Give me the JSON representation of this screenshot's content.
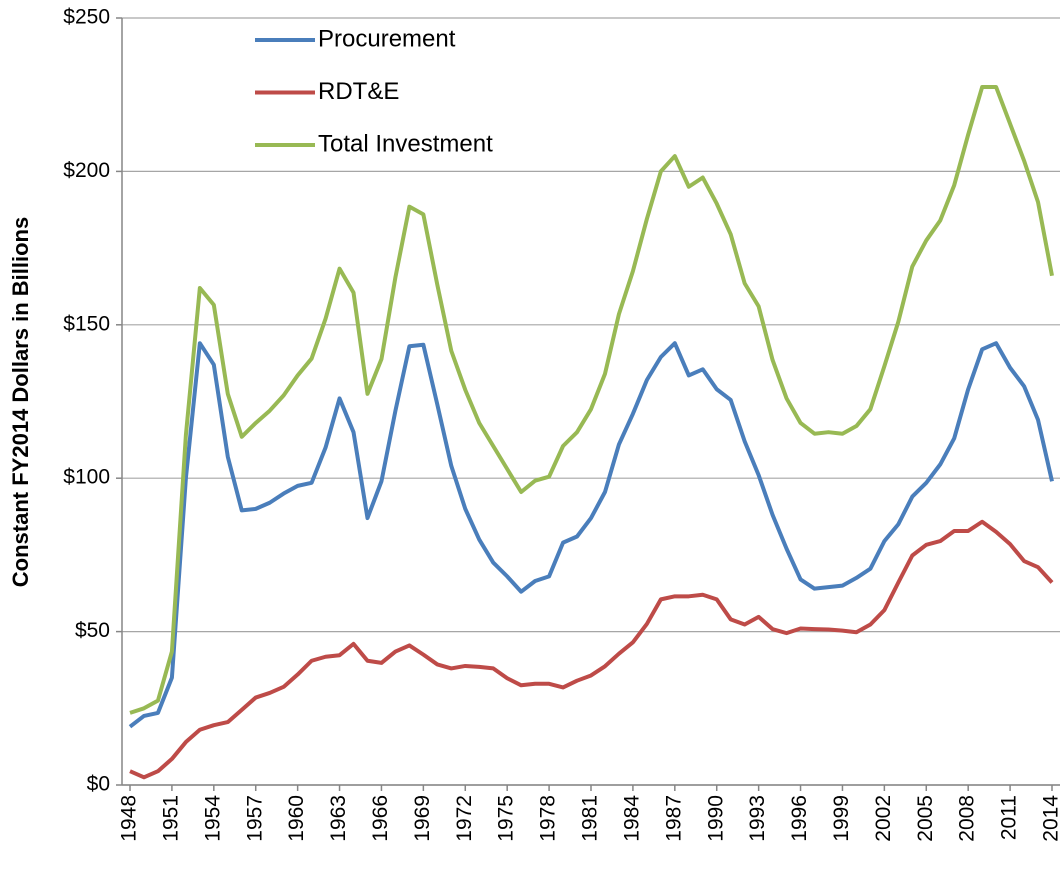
{
  "chart_data": {
    "type": "line",
    "y_label": "Constant FY2014 Dollars in Billions",
    "x": [
      1948,
      1949,
      1950,
      1951,
      1952,
      1953,
      1954,
      1955,
      1956,
      1957,
      1958,
      1959,
      1960,
      1961,
      1962,
      1963,
      1964,
      1965,
      1966,
      1967,
      1968,
      1969,
      1970,
      1971,
      1972,
      1973,
      1974,
      1975,
      1976,
      1977,
      1978,
      1979,
      1980,
      1981,
      1982,
      1983,
      1984,
      1985,
      1986,
      1987,
      1988,
      1989,
      1990,
      1991,
      1992,
      1993,
      1994,
      1995,
      1996,
      1997,
      1998,
      1999,
      2000,
      2001,
      2002,
      2003,
      2004,
      2005,
      2006,
      2007,
      2008,
      2009,
      2010,
      2011,
      2012,
      2013,
      2014
    ],
    "xlim": [
      1948,
      2014
    ],
    "xticks": [
      1948,
      1951,
      1954,
      1957,
      1960,
      1963,
      1966,
      1969,
      1972,
      1975,
      1978,
      1981,
      1984,
      1987,
      1990,
      1993,
      1996,
      1999,
      2002,
      2005,
      2008,
      2011,
      2014
    ],
    "ylim": [
      0,
      250
    ],
    "yticks": [
      {
        "value": 0,
        "label": "$0"
      },
      {
        "value": 50,
        "label": "$50"
      },
      {
        "value": 100,
        "label": "$100"
      },
      {
        "value": 150,
        "label": "$150"
      },
      {
        "value": 200,
        "label": "$200"
      },
      {
        "value": 250,
        "label": "$250"
      }
    ],
    "grid": true,
    "legend": "top-left",
    "series": [
      {
        "name": "Procurement",
        "color": "#4a7ebb",
        "values": [
          19,
          22.5,
          23.5,
          35,
          100,
          144,
          137,
          107,
          89.5,
          90,
          92,
          95,
          97.5,
          98.5,
          110,
          126,
          115,
          87,
          99,
          122,
          143,
          143.5,
          124,
          104,
          90,
          80,
          72.5,
          68,
          63,
          66.5,
          68,
          79,
          81,
          87,
          95.5,
          111,
          121,
          132,
          139.5,
          144,
          133.5,
          135.5,
          129,
          125.5,
          112,
          101,
          88,
          77,
          67,
          64,
          64.5,
          65,
          67.5,
          70.5,
          79.5,
          85,
          94,
          98.5,
          104.5,
          113,
          129,
          142,
          144,
          136,
          130,
          119,
          99
        ]
      },
      {
        "name": "RDT&E",
        "color": "#be4b48",
        "values": [
          4.5,
          2.5,
          4.5,
          8.5,
          14,
          18,
          19.5,
          20.5,
          24.5,
          28.5,
          30,
          32,
          36,
          40.5,
          41.8,
          42.3,
          46,
          40.5,
          39.8,
          43.5,
          45.5,
          42.5,
          39.3,
          38,
          38.8,
          38.5,
          38,
          34.8,
          32.5,
          33,
          33,
          31.8,
          34,
          35.7,
          38.7,
          42.8,
          46.5,
          52.5,
          60.5,
          61.5,
          61.5,
          62,
          60.5,
          54,
          52.3,
          54.8,
          50.8,
          49.5,
          51,
          50.8,
          50.7,
          50.3,
          49.8,
          52.3,
          57,
          66,
          74.8,
          78.3,
          79.5,
          82.8,
          82.8,
          85.8,
          82.5,
          78.5,
          73,
          71,
          66
        ]
      },
      {
        "name": "Total Investment",
        "color": "#98b954",
        "values": [
          23.5,
          25,
          27.5,
          43.5,
          114,
          162,
          156.5,
          127.5,
          113.5,
          118,
          122,
          127,
          133.5,
          139,
          152,
          168.3,
          160.5,
          127.5,
          138.8,
          165.5,
          188.5,
          186,
          163,
          141.5,
          128.8,
          118,
          110.5,
          103,
          95.5,
          99.2,
          100.5,
          110.5,
          115,
          122.5,
          134,
          153.5,
          167.5,
          184.5,
          200,
          205,
          195,
          198,
          189.5,
          179.5,
          163.5,
          156,
          138.5,
          126,
          118,
          114.5,
          115,
          114.5,
          117,
          122.5,
          136.5,
          151,
          169,
          177.5,
          184,
          195.5,
          212,
          227.5,
          227.5,
          215.5,
          203.5,
          190,
          166
        ]
      }
    ]
  }
}
